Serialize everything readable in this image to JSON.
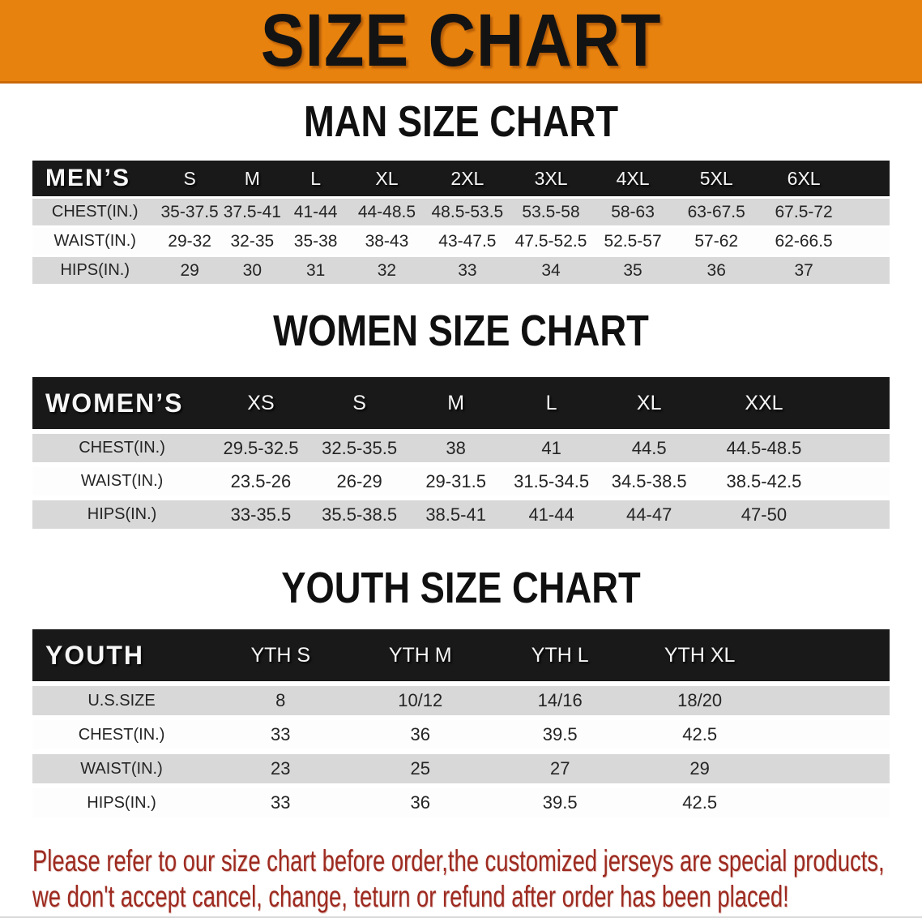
{
  "banner": {
    "title": "SIZE CHART",
    "bg_color": "#e8820e",
    "text_color": "#131313"
  },
  "sections": [
    {
      "heading": "MAN SIZE CHART",
      "label_header": "MEN’S",
      "columns": [
        "S",
        "M",
        "L",
        "XL",
        "2XL",
        "3XL",
        "4XL",
        "5XL",
        "6XL"
      ],
      "rows": [
        {
          "label": "CHEST(IN.)",
          "values": [
            "35-37.5",
            "37.5-41",
            "41-44",
            "44-48.5",
            "48.5-53.5",
            "53.5-58",
            "58-63",
            "63-67.5",
            "67.5-72"
          ]
        },
        {
          "label": "WAIST(IN.)",
          "values": [
            "29-32",
            "32-35",
            "35-38",
            "38-43",
            "43-47.5",
            "47.5-52.5",
            "52.5-57",
            "57-62",
            "62-66.5"
          ]
        },
        {
          "label": "HIPS(IN.)",
          "values": [
            "29",
            "30",
            "31",
            "32",
            "33",
            "34",
            "35",
            "36",
            "37"
          ]
        }
      ]
    },
    {
      "heading": "WOMEN SIZE CHART",
      "label_header": "WOMEN’S",
      "columns": [
        "XS",
        "S",
        "M",
        "L",
        "XL",
        "XXL"
      ],
      "rows": [
        {
          "label": "CHEST(IN.)",
          "values": [
            "29.5-32.5",
            "32.5-35.5",
            "38",
            "41",
            "44.5",
            "44.5-48.5"
          ]
        },
        {
          "label": "WAIST(IN.)",
          "values": [
            "23.5-26",
            "26-29",
            "29-31.5",
            "31.5-34.5",
            "34.5-38.5",
            "38.5-42.5"
          ]
        },
        {
          "label": "HIPS(IN.)",
          "values": [
            "33-35.5",
            "35.5-38.5",
            "38.5-41",
            "41-44",
            "44-47",
            "47-50"
          ]
        }
      ]
    },
    {
      "heading": "YOUTH SIZE CHART",
      "label_header": "YOUTH",
      "columns": [
        "YTH S",
        "YTH M",
        "YTH L",
        "YTH XL"
      ],
      "rows": [
        {
          "label": "U.S.SIZE",
          "values": [
            "8",
            "10/12",
            "14/16",
            "18/20"
          ]
        },
        {
          "label": "CHEST(IN.)",
          "values": [
            "33",
            "36",
            "39.5",
            "42.5"
          ]
        },
        {
          "label": "WAIST(IN.)",
          "values": [
            "23",
            "25",
            "27",
            "29"
          ]
        },
        {
          "label": "HIPS(IN.)",
          "values": [
            "33",
            "36",
            "39.5",
            "42.5"
          ]
        }
      ]
    }
  ],
  "disclaimer": {
    "line1": "Please refer to our size chart before order,the customized jerseys are special products,",
    "line2": "we don't accept cancel, change, teturn or refund after order has been placed!",
    "text_color": "#9d2a20"
  },
  "colors": {
    "banner_orange": "#e8820e",
    "table_header_black": "#191919",
    "shaded_row_gray": "#d8d8d8",
    "disclaimer_red": "#9d2a20"
  }
}
